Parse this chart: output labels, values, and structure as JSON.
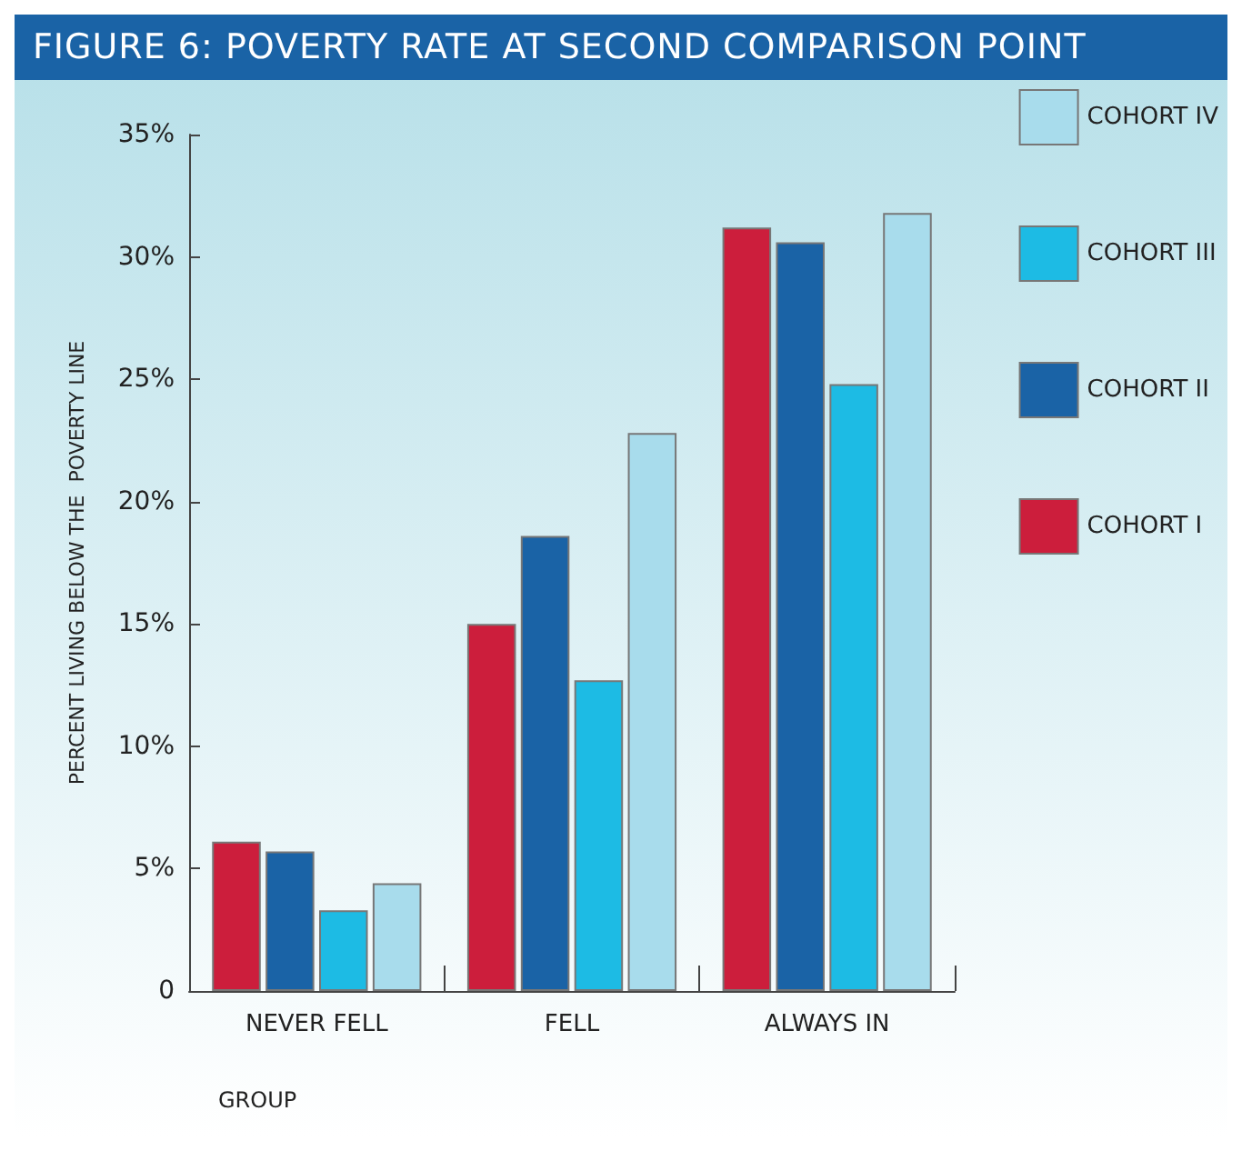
{
  "chart_data": {
    "type": "bar",
    "title": "FIGURE 6: POVERTY RATE AT SECOND COMPARISON POINT",
    "xlabel": "GROUP",
    "ylabel": "PERCENT LIVING BELOW THE  POVERTY LINE",
    "categories": [
      "NEVER FELL",
      "FELL",
      "ALWAYS IN"
    ],
    "series": [
      {
        "name": "COHORT I",
        "color": "#cc1e3c",
        "values": [
          6.1,
          15.0,
          31.2
        ]
      },
      {
        "name": "COHORT II",
        "color": "#1a63a6",
        "values": [
          5.7,
          18.6,
          30.6
        ]
      },
      {
        "name": "COHORT III",
        "color": "#1dbbe4",
        "values": [
          3.3,
          12.7,
          24.8
        ]
      },
      {
        "name": "COHORT IV",
        "color": "#a8dcec",
        "values": [
          4.4,
          22.8,
          31.8
        ]
      }
    ],
    "ylim": [
      0,
      35
    ],
    "yticks": [
      0,
      {
        "value": 5,
        "label": "5%"
      },
      {
        "value": 10,
        "label": "10%"
      },
      {
        "value": 15,
        "label": "15%"
      },
      {
        "value": 20,
        "label": "20%"
      },
      {
        "value": 25,
        "label": "25%"
      },
      {
        "value": 30,
        "label": "30%"
      },
      {
        "value": 35,
        "label": "35%"
      }
    ],
    "grid": false,
    "legend": "right"
  }
}
